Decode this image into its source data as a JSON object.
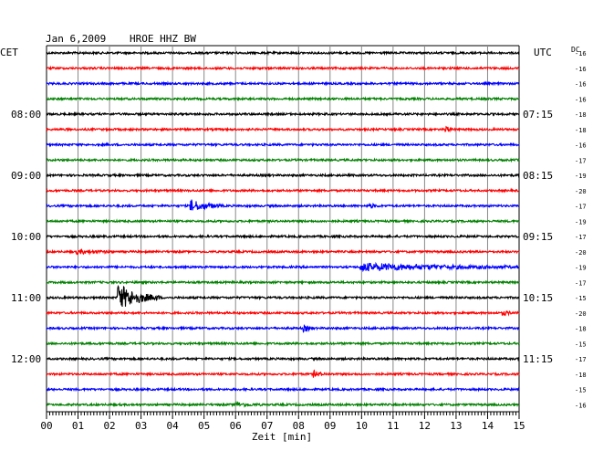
{
  "header": {
    "date": "Jan 6,2009",
    "station": "HROE HHZ BW",
    "left_tz": "CET",
    "right_tz": "UTC",
    "dc_label": "DC"
  },
  "chart_data": {
    "type": "line",
    "title": "Jan 6,2009   HROE HHZ BW",
    "xlabel": "Zeit [min]",
    "xlim": [
      0,
      15
    ],
    "x_ticks": [
      "00",
      "01",
      "02",
      "03",
      "04",
      "05",
      "06",
      "07",
      "08",
      "09",
      "10",
      "11",
      "12",
      "13",
      "14",
      "15"
    ],
    "grid": true,
    "left_time_labels": [
      {
        "row": 4,
        "text": "08:00"
      },
      {
        "row": 8,
        "text": "09:00"
      },
      {
        "row": 12,
        "text": "10:00"
      },
      {
        "row": 16,
        "text": "11:00"
      },
      {
        "row": 20,
        "text": "12:00"
      }
    ],
    "right_time_labels": [
      {
        "row": 4,
        "text": "07:15"
      },
      {
        "row": 8,
        "text": "08:15"
      },
      {
        "row": 12,
        "text": "09:15"
      },
      {
        "row": 16,
        "text": "10:15"
      },
      {
        "row": 20,
        "text": "11:15"
      }
    ],
    "trace_colors": [
      "#000000",
      "#ff0000",
      "#0000ff",
      "#008000"
    ],
    "dc_offsets": [
      -16,
      -16,
      -16,
      -16,
      -18,
      -18,
      -16,
      -17,
      -19,
      -20,
      -17,
      -19,
      -17,
      -20,
      -19,
      -17,
      -15,
      -20,
      -18,
      -15,
      -17,
      -18,
      -15,
      -16
    ],
    "events": [
      {
        "row": 10,
        "minute": 4.6,
        "amplitude": 6,
        "duration_min": 1.0
      },
      {
        "row": 10,
        "minute": 10.3,
        "amplitude": 2,
        "duration_min": 0.3
      },
      {
        "row": 13,
        "minute": 1.0,
        "amplitude": 2,
        "duration_min": 1.2
      },
      {
        "row": 14,
        "minute": 10.0,
        "amplitude": 4,
        "duration_min": 5.5
      },
      {
        "row": 16,
        "minute": 2.3,
        "amplitude": 14,
        "duration_min": 1.3
      },
      {
        "row": 5,
        "minute": 12.7,
        "amplitude": 3,
        "duration_min": 0.2
      },
      {
        "row": 18,
        "minute": 8.2,
        "amplitude": 3,
        "duration_min": 0.3
      },
      {
        "row": 21,
        "minute": 8.5,
        "amplitude": 3,
        "duration_min": 0.4
      },
      {
        "row": 23,
        "minute": 6.0,
        "amplitude": 2,
        "duration_min": 0.8
      },
      {
        "row": 17,
        "minute": 14.5,
        "amplitude": 2,
        "duration_min": 0.4
      }
    ]
  }
}
